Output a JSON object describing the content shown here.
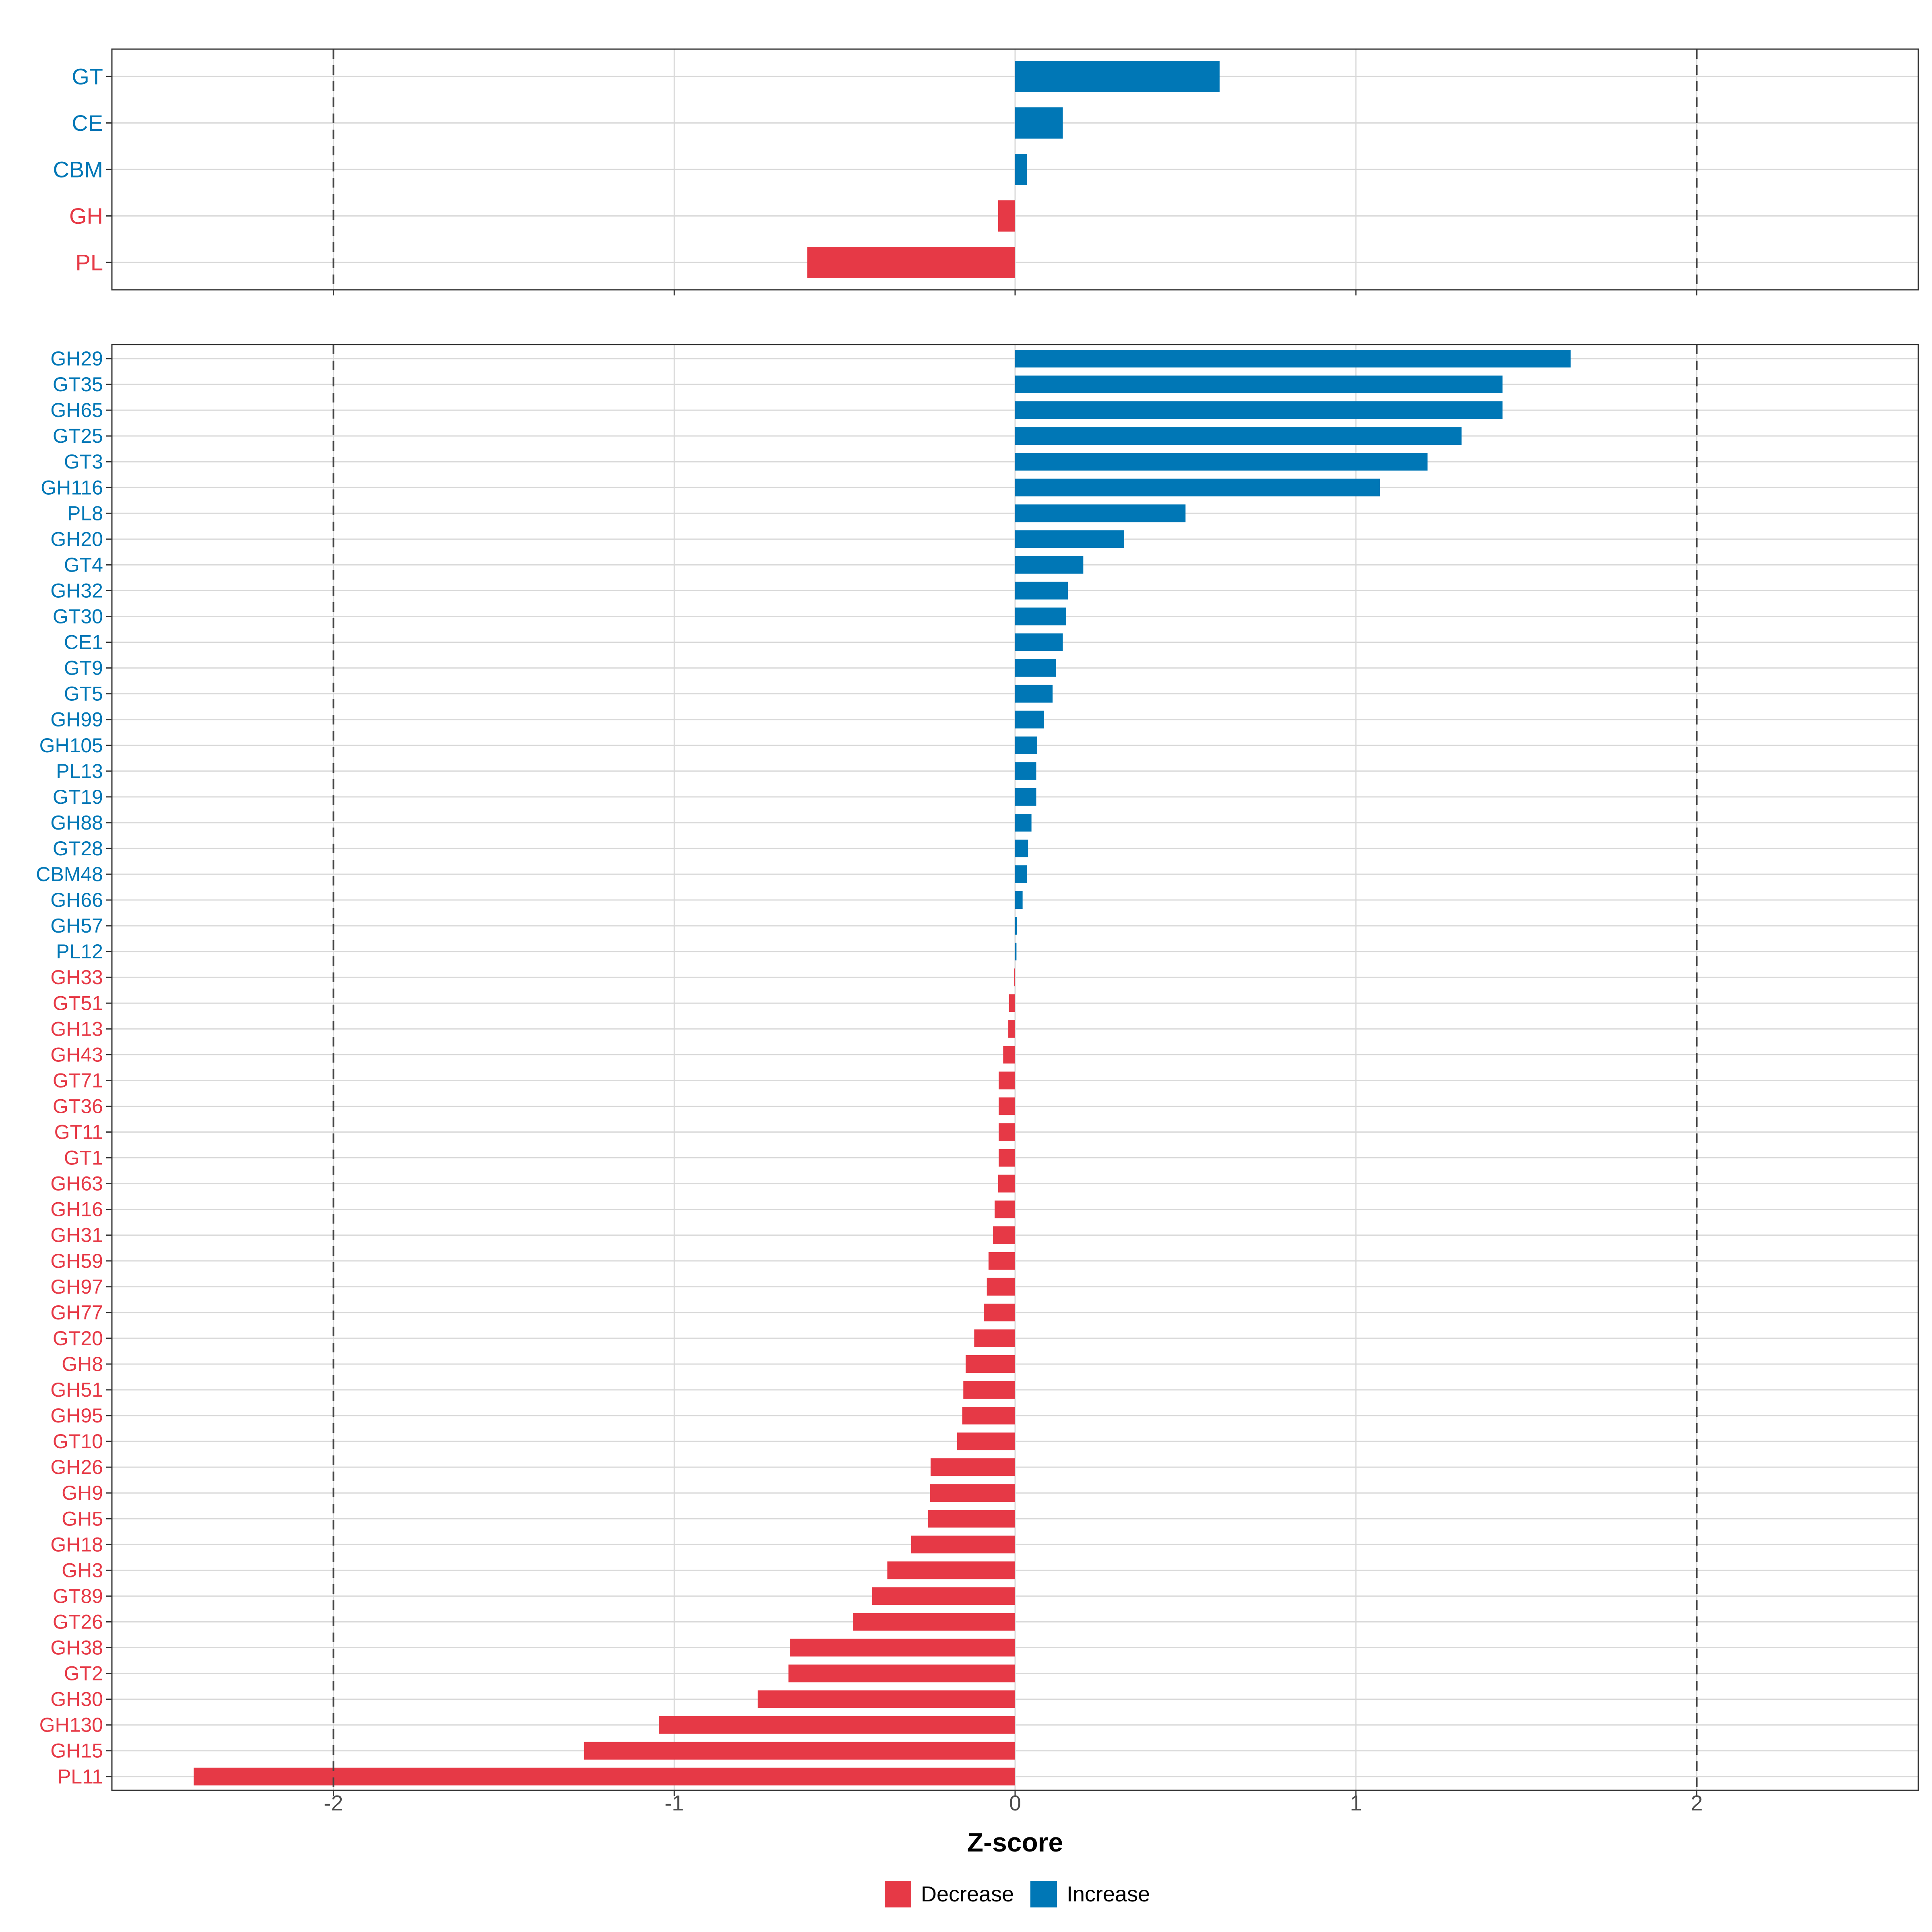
{
  "colors": {
    "decrease": "#E63946",
    "increase": "#0077B6",
    "grid": "#D9D9D9",
    "panel_border": "#333333",
    "ref_line": "#444444",
    "tick_text": "#4D4D4D"
  },
  "chart_data": [
    {
      "type": "bar",
      "orientation": "horizontal",
      "panel": "family",
      "categories": [
        "GT",
        "CE",
        "CBM",
        "GH",
        "PL"
      ],
      "values": [
        0.6,
        0.14,
        0.035,
        -0.05,
        -0.61
      ],
      "xlim": [
        -2.65,
        2.65
      ],
      "reference_lines": [
        -2,
        2
      ]
    },
    {
      "type": "bar",
      "orientation": "horizontal",
      "panel": "subfamily",
      "categories": [
        "GH29",
        "GT35",
        "GH65",
        "GT25",
        "GT3",
        "GH116",
        "PL8",
        "GH20",
        "GT4",
        "GH32",
        "GT30",
        "CE1",
        "GT9",
        "GT5",
        "GH99",
        "GH105",
        "PL13",
        "GT19",
        "GH88",
        "GT28",
        "CBM48",
        "GH66",
        "GH57",
        "PL12",
        "GH33",
        "GT51",
        "GH13",
        "GH43",
        "GT71",
        "GT36",
        "GT11",
        "GT1",
        "GH63",
        "GH16",
        "GH31",
        "GH59",
        "GH97",
        "GH77",
        "GT20",
        "GH8",
        "GH51",
        "GH95",
        "GT10",
        "GH26",
        "GH9",
        "GH5",
        "GH18",
        "GH3",
        "GT89",
        "GT26",
        "GH38",
        "GT2",
        "GH30",
        "GH130",
        "GH15",
        "PL11"
      ],
      "values": [
        1.63,
        1.43,
        1.43,
        1.31,
        1.21,
        1.07,
        0.5,
        0.32,
        0.2,
        0.155,
        0.15,
        0.14,
        0.12,
        0.11,
        0.085,
        0.065,
        0.062,
        0.062,
        0.048,
        0.038,
        0.035,
        0.022,
        0.006,
        0.004,
        -0.003,
        -0.018,
        -0.02,
        -0.035,
        -0.048,
        -0.048,
        -0.048,
        -0.048,
        -0.05,
        -0.06,
        -0.065,
        -0.078,
        -0.083,
        -0.092,
        -0.12,
        -0.145,
        -0.152,
        -0.155,
        -0.17,
        -0.248,
        -0.25,
        -0.255,
        -0.305,
        -0.375,
        -0.42,
        -0.475,
        -0.66,
        -0.665,
        -0.755,
        -1.045,
        -1.265,
        -2.41
      ],
      "xlim": [
        -2.65,
        2.65
      ],
      "reference_lines": [
        -2,
        2
      ]
    }
  ],
  "axis": {
    "xlabel": "Z-score",
    "ticks": [
      -2,
      -1,
      0,
      1,
      2
    ],
    "tick_labels": [
      "-2",
      "-1",
      "0",
      "1",
      "2"
    ]
  },
  "legend": {
    "items": [
      {
        "label": "Decrease",
        "color": "#E63946"
      },
      {
        "label": "Increase",
        "color": "#0077B6"
      }
    ]
  }
}
